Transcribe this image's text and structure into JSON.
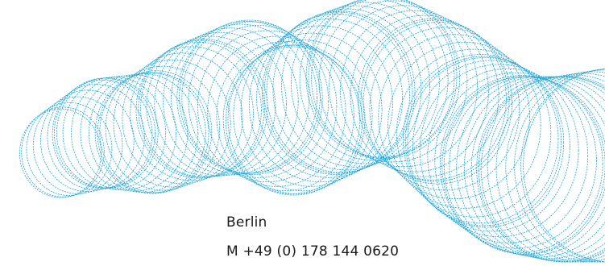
{
  "decoration": {
    "icon": "circular-wave-graphic",
    "stroke_color": "#1fa6d8"
  },
  "contact": {
    "city": "Berlin",
    "phone": "M +49 (0) 178 144 0620"
  }
}
